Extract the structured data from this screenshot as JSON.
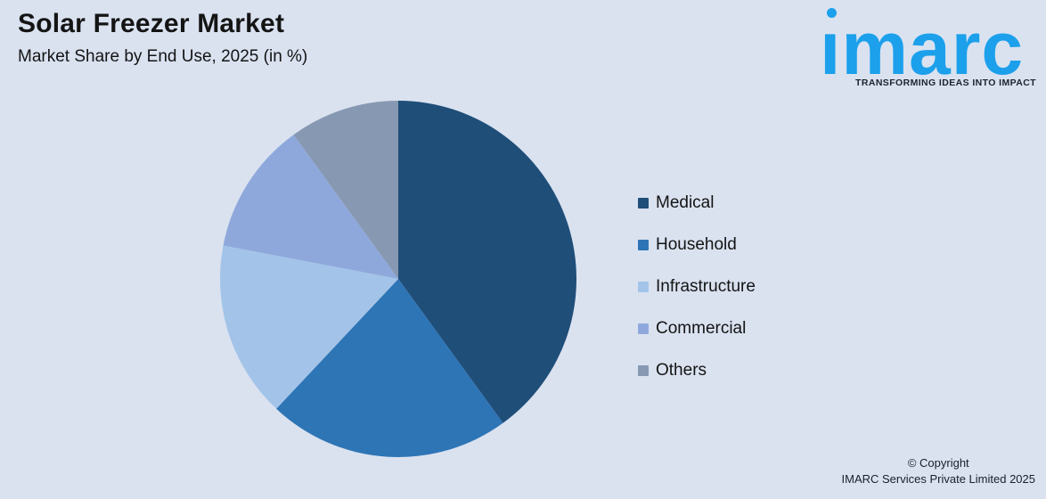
{
  "page": {
    "background_color": "#DAE2F0"
  },
  "header": {
    "title": "Solar Freezer Market",
    "subtitle": "Market Share by End Use, 2025 (in %)"
  },
  "logo": {
    "wordmark": "imarc",
    "tagline": "TRANSFORMING IDEAS INTO IMPACT",
    "brand_color": "#1CA0EB",
    "tagline_color": "#1B2430"
  },
  "chart_data": {
    "type": "pie",
    "title": "Solar Freezer Market",
    "subtitle": "Market Share by End Use, 2025 (in %)",
    "unit": "%",
    "categories": [
      "Medical",
      "Household",
      "Infrastructure",
      "Commercial",
      "Others"
    ],
    "values": [
      40,
      22,
      16,
      12,
      10
    ],
    "colors": [
      "#1F4E79",
      "#2E75B6",
      "#A3C4E8",
      "#8FA8DC",
      "#8799B2"
    ],
    "start_angle_deg": 0,
    "direction": "clockwise",
    "labels_on_slices": false,
    "legend_position": "right"
  },
  "footer": {
    "line1": "© Copyright",
    "line2": "IMARC Services Private Limited 2025"
  }
}
